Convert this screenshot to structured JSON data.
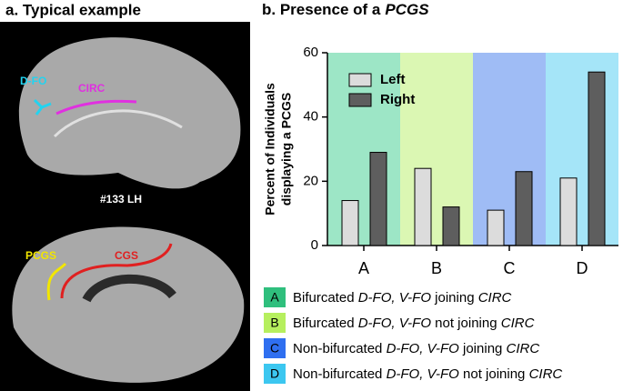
{
  "panel_a": {
    "title": "a. Typical example",
    "labels": [
      "D-FO",
      "CIRC",
      "#133 LH",
      "PCGS",
      "CGS"
    ]
  },
  "chart_data": {
    "type": "bar",
    "title": "b. Presence of a",
    "title_italic": "PCGS",
    "y_label": [
      "Percent of Individuals",
      "displaying a PCGS"
    ],
    "categories": [
      "A",
      "B",
      "C",
      "D"
    ],
    "category_colors": [
      "#9de6c6",
      "#dbf7b3",
      "#9fbcf5",
      "#a5e5f8"
    ],
    "series": [
      {
        "name": "Left",
        "color": "#dcdcdc",
        "values": [
          14,
          24,
          11,
          21
        ]
      },
      {
        "name": "Right",
        "color": "#5e5e5e",
        "values": [
          29,
          12,
          23,
          54
        ]
      }
    ],
    "ylim": [
      0,
      60
    ],
    "yticks": [
      0,
      20,
      40,
      60
    ],
    "legend": "upper-left",
    "category_legend": [
      {
        "key": "A",
        "color": "#2fbf7d",
        "parts": [
          {
            "text": "Bifurcated "
          },
          {
            "text": "D-FO, V-FO",
            "italic": true
          },
          {
            "text": " joining "
          },
          {
            "text": "CIRC",
            "italic": true
          }
        ]
      },
      {
        "key": "B",
        "color": "#b6ef5e",
        "parts": [
          {
            "text": "Bifurcated "
          },
          {
            "text": "D-FO, V-FO",
            "italic": true
          },
          {
            "text": " not joining "
          },
          {
            "text": "CIRC",
            "italic": true
          }
        ]
      },
      {
        "key": "C",
        "color": "#2f6ff0",
        "parts": [
          {
            "text": "Non-bifurcated "
          },
          {
            "text": "D-FO, V-FO",
            "italic": true
          },
          {
            "text": " joining "
          },
          {
            "text": "CIRC",
            "italic": true
          }
        ]
      },
      {
        "key": "D",
        "color": "#3cc7f0",
        "parts": [
          {
            "text": "Non-bifurcated "
          },
          {
            "text": "D-FO, V-FO",
            "italic": true
          },
          {
            "text": " not joining "
          },
          {
            "text": "CIRC",
            "italic": true
          }
        ]
      }
    ]
  }
}
